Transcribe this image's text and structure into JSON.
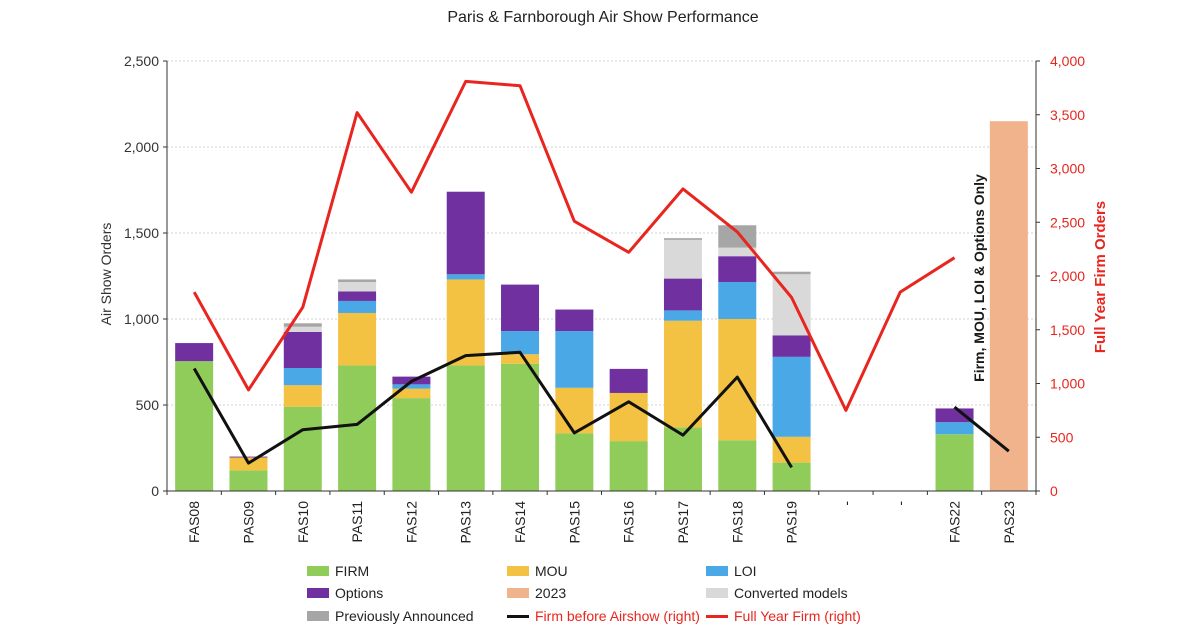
{
  "chart_data": {
    "type": "bar",
    "title": "Paris & Farnborough Air Show Performance",
    "ylabel": "Air Show Orders",
    "y2label": "Full Year Firm Orders",
    "ylim": [
      0,
      2500
    ],
    "y2lim": [
      0,
      4000
    ],
    "yticks": [
      "0",
      "500",
      "1,000",
      "1,500",
      "2,000",
      "2,500"
    ],
    "y2ticks": [
      "0",
      "500",
      "1,000",
      "1,500",
      "2,000",
      "2,500",
      "3,000",
      "3,500",
      "4,000"
    ],
    "categories": [
      "FAS08",
      "PAS09",
      "FAS10",
      "PAS11",
      "FAS12",
      "PAS13",
      "FAS14",
      "PAS15",
      "FAS16",
      "PAS17",
      "FAS18",
      "PAS19",
      "-",
      "-",
      "FAS22",
      "PAS23"
    ],
    "series": [
      {
        "name": "FIRM",
        "kind": "bar",
        "color": "#8fcc5a",
        "values": [
          755,
          120,
          490,
          730,
          540,
          730,
          740,
          335,
          290,
          370,
          295,
          165,
          0,
          0,
          330,
          0
        ]
      },
      {
        "name": "MOU",
        "kind": "bar",
        "color": "#f4c242",
        "values": [
          0,
          75,
          125,
          305,
          55,
          500,
          55,
          265,
          280,
          620,
          705,
          150,
          0,
          0,
          0,
          0
        ]
      },
      {
        "name": "LOI",
        "kind": "bar",
        "color": "#4aa8e6",
        "values": [
          0,
          0,
          100,
          70,
          25,
          30,
          135,
          330,
          0,
          60,
          215,
          465,
          0,
          0,
          70,
          0
        ]
      },
      {
        "name": "Options",
        "kind": "bar",
        "color": "#7030a0",
        "values": [
          105,
          5,
          210,
          55,
          45,
          480,
          270,
          125,
          140,
          185,
          150,
          125,
          0,
          0,
          80,
          0
        ]
      },
      {
        "name": "2023",
        "kind": "bar",
        "color": "#f0b38c",
        "values": [
          0,
          0,
          0,
          0,
          0,
          0,
          0,
          0,
          0,
          0,
          0,
          0,
          0,
          0,
          0,
          2150
        ]
      },
      {
        "name": "Converted models",
        "kind": "bar",
        "color": "#d9d9d9",
        "values": [
          0,
          0,
          30,
          55,
          0,
          0,
          0,
          0,
          0,
          225,
          50,
          355,
          0,
          0,
          0,
          0
        ]
      },
      {
        "name": "Previously Announced",
        "kind": "bar",
        "color": "#a6a6a6",
        "values": [
          0,
          0,
          20,
          15,
          0,
          0,
          0,
          0,
          0,
          10,
          130,
          15,
          0,
          0,
          0,
          0
        ]
      },
      {
        "name": "Firm before Airshow (right)",
        "kind": "line",
        "axis": "right",
        "color": "#111111",
        "values": [
          1140,
          260,
          570,
          620,
          1020,
          1260,
          1290,
          540,
          830,
          520,
          1060,
          220,
          null,
          null,
          780,
          370
        ]
      },
      {
        "name": "Full Year Firm (right)",
        "kind": "line",
        "axis": "right",
        "color": "#e8251e",
        "values": [
          1850,
          940,
          1710,
          3520,
          2780,
          3810,
          3770,
          2510,
          2220,
          2810,
          2410,
          1800,
          750,
          1850,
          2170,
          null
        ]
      }
    ],
    "annotations": [
      {
        "category": "PAS23",
        "text": "Firm, MOU, LOI & Options Only"
      }
    ],
    "legend": [
      "FIRM",
      "MOU",
      "LOI",
      "Options",
      "2023",
      "Converted models",
      "Previously Announced",
      "Firm before Airshow (right)",
      "Full Year Firm (right)"
    ]
  }
}
